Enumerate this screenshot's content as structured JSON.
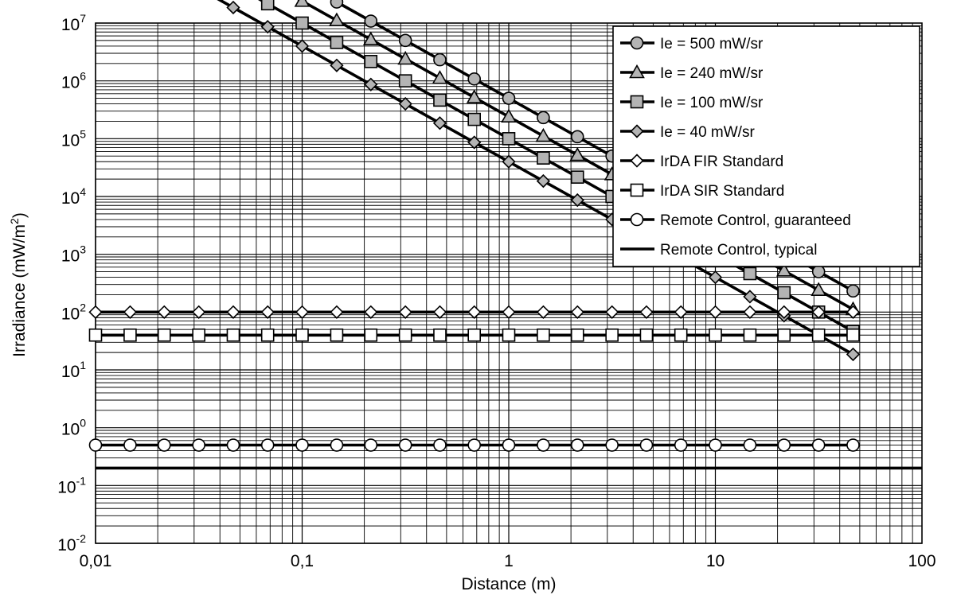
{
  "chart_data": {
    "type": "line",
    "xlabel": "Distance (m)",
    "ylabel_main": "Irradiance  (mW/m",
    "ylabel_sup": "2",
    "ylabel_tail": ")",
    "xscale": "log",
    "yscale": "log",
    "xlim": [
      0.01,
      100
    ],
    "ylim": [
      0.01,
      10000000
    ],
    "x_ticks": [
      {
        "value": 0.01,
        "label": "0,01"
      },
      {
        "value": 0.1,
        "label": "0,1"
      },
      {
        "value": 1,
        "label": "1"
      },
      {
        "value": 10,
        "label": "10"
      },
      {
        "value": 100,
        "label": "100"
      }
    ],
    "y_ticks": [
      {
        "value": 0.01,
        "base": "10",
        "exp": "-2"
      },
      {
        "value": 0.1,
        "base": "10",
        "exp": "-1"
      },
      {
        "value": 1,
        "base": "10",
        "exp": "0"
      },
      {
        "value": 10,
        "base": "10",
        "exp": "1"
      },
      {
        "value": 100,
        "base": "10",
        "exp": "2"
      },
      {
        "value": 1000,
        "base": "10",
        "exp": "3"
      },
      {
        "value": 10000,
        "base": "10",
        "exp": "4"
      },
      {
        "value": 100000,
        "base": "10",
        "exp": "5"
      },
      {
        "value": 1000000,
        "base": "10",
        "exp": "6"
      },
      {
        "value": 10000000,
        "base": "10",
        "exp": "7"
      }
    ],
    "grid": true,
    "legend_position": "top-right",
    "x": [
      0.01,
      0.0147,
      0.0215,
      0.0316,
      0.0464,
      0.0681,
      0.1,
      0.147,
      0.215,
      0.316,
      0.464,
      0.681,
      1,
      1.47,
      2.15,
      3.16,
      4.64,
      6.81,
      10,
      14.7,
      21.5,
      31.6,
      46.4
    ],
    "series": [
      {
        "name": "Ie = 500 mW/sr",
        "marker": "circle",
        "fill": "#b4b4b4",
        "intensity": 500
      },
      {
        "name": "Ie = 240 mW/sr",
        "marker": "triangle",
        "fill": "#b4b4b4",
        "intensity": 240
      },
      {
        "name": "Ie = 100 mW/sr",
        "marker": "square",
        "fill": "#b4b4b4",
        "intensity": 100
      },
      {
        "name": "Ie = 40 mW/sr",
        "marker": "diamond",
        "fill": "#b4b4b4",
        "intensity": 40
      },
      {
        "name": "IrDA FIR Standard",
        "marker": "diamond",
        "fill": "#ffffff",
        "constant": 100
      },
      {
        "name": "IrDA SIR Standard",
        "marker": "square",
        "fill": "#ffffff",
        "constant": 40
      },
      {
        "name": "Remote Control, guaranteed",
        "marker": "circle",
        "fill": "#ffffff",
        "constant": 0.5
      },
      {
        "name": "Remote Control, typical",
        "marker": "none",
        "fill": "#000000",
        "constant": 0.2
      }
    ]
  }
}
